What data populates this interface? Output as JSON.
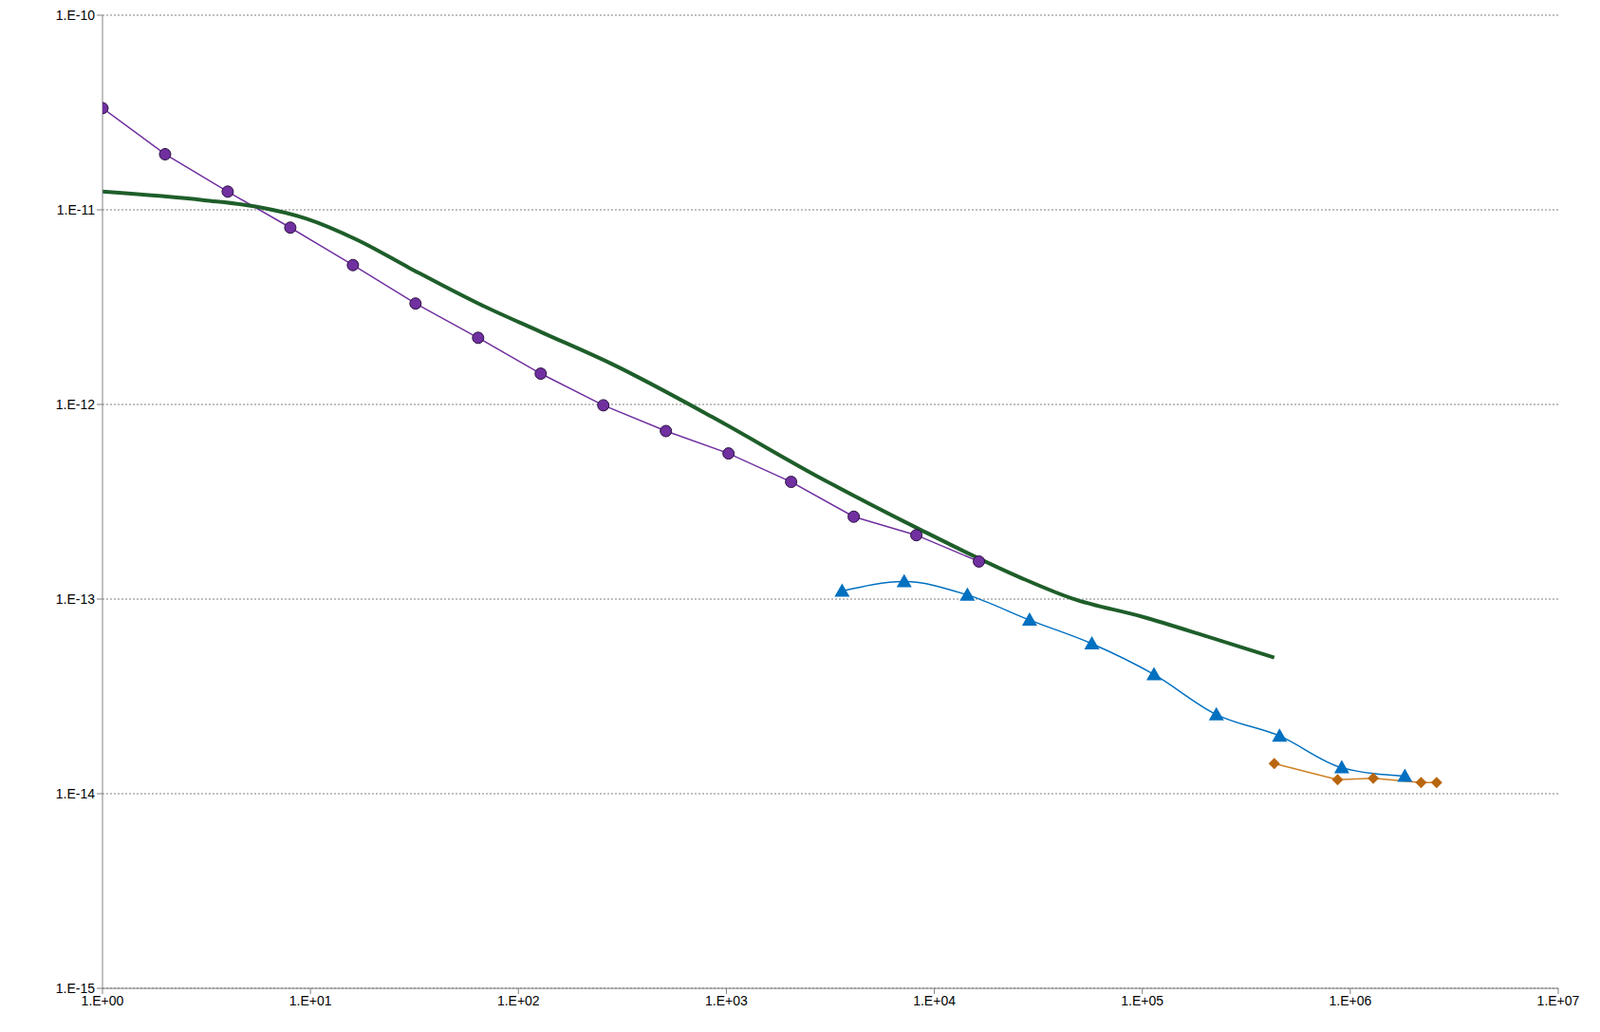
{
  "chart_data": {
    "type": "line",
    "log": true,
    "grid": true,
    "xlim": [
      1,
      10000000
    ],
    "xticks": [
      {
        "value": 1,
        "label": "1.E+00"
      },
      {
        "value": 10,
        "label": "1.E+01"
      },
      {
        "value": 100,
        "label": "1.E+02"
      },
      {
        "value": 1000,
        "label": "1.E+03"
      },
      {
        "value": 10000,
        "label": "1.E+04"
      },
      {
        "value": 100000,
        "label": "1.E+05"
      },
      {
        "value": 1000000,
        "label": "1.E+06"
      },
      {
        "value": 10000000,
        "label": "1.E+07"
      }
    ],
    "ylim": [
      1e-15,
      1e-10
    ],
    "yticks": [
      {
        "value": 1e-15,
        "label": "1.E-15"
      },
      {
        "value": 1e-14,
        "label": "1.E-14"
      },
      {
        "value": 1e-13,
        "label": "1.E-13"
      },
      {
        "value": 1e-12,
        "label": "1.E-12"
      },
      {
        "value": 1e-11,
        "label": "1.E-11"
      },
      {
        "value": 1e-10,
        "label": "1.E-10"
      }
    ],
    "series": [
      {
        "color": "#7030a0",
        "marker": "circle",
        "line_style": "solid",
        "x": [
          1,
          2,
          4,
          8,
          16,
          32,
          64,
          128,
          256,
          512,
          1024,
          2048,
          4096,
          8192,
          16384
        ],
        "values": [
          3.33e-11,
          1.93e-11,
          1.24e-11,
          8.1e-12,
          5.2e-12,
          3.3e-12,
          2.2e-12,
          1.44e-12,
          9.9e-13,
          7.3e-13,
          5.6e-13,
          4e-13,
          2.65e-13,
          2.13e-13,
          1.56e-13
        ]
      },
      {
        "color": "#1e5e2a",
        "marker": "none",
        "line_style": "smooth",
        "x": [
          1,
          3.09,
          5.44,
          9.57,
          16.8,
          29.6,
          65.3,
          128,
          283,
          877,
          2710,
          8380,
          25900,
          45600,
          100500,
          198000,
          431000
        ],
        "values": [
          1.24e-11,
          1.12e-11,
          1.04e-11,
          9e-12,
          7e-12,
          5.06e-12,
          3.27e-12,
          2.36e-12,
          1.61e-12,
          8.5e-13,
          4.3e-13,
          2.3e-13,
          1.29e-13,
          1.01e-13,
          8.1e-14,
          6.5e-14,
          5e-14
        ]
      },
      {
        "color": "#0070c0",
        "marker": "triangle",
        "line_style": "smooth",
        "x": [
          3600,
          7160,
          14420,
          28700,
          57200,
          113800,
          227000,
          457000,
          910000,
          1830000
        ],
        "values": [
          1.1e-13,
          1.23e-13,
          1.05e-13,
          7.8e-14,
          5.9e-14,
          4.1e-14,
          2.55e-14,
          1.98e-14,
          1.36e-14,
          1.23e-14
        ]
      },
      {
        "color": "#d07f22",
        "marker": "diamond",
        "line_style": "solid",
        "x": [
          431000,
          869000,
          1290000,
          2190000,
          2600000
        ],
        "values": [
          1.43e-14,
          1.18e-14,
          1.2e-14,
          1.14e-14,
          1.14e-14
        ]
      }
    ]
  }
}
